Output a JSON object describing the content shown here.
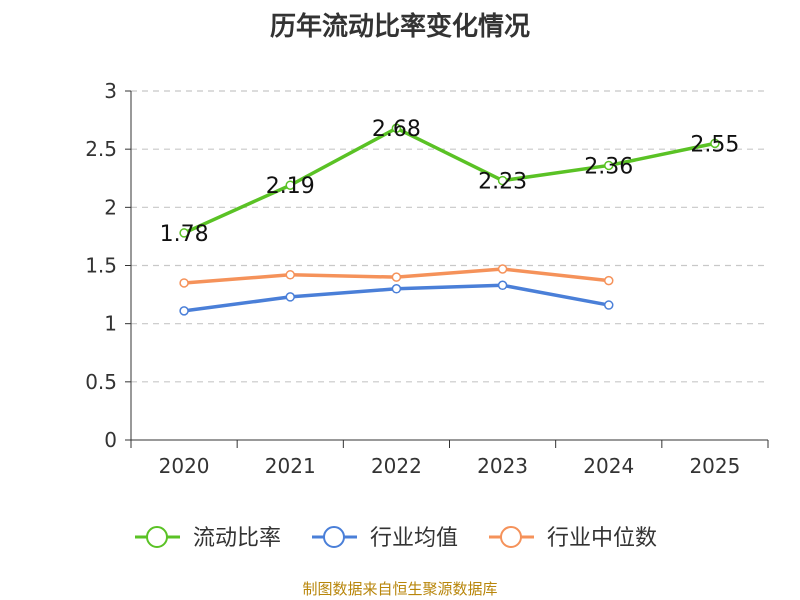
{
  "chart_data": {
    "type": "line",
    "title": "历年流动比率变化情况",
    "categories": [
      "2020",
      "2021",
      "2022",
      "2023",
      "2024",
      "2025"
    ],
    "ylim": [
      0,
      3
    ],
    "yticks": [
      "0",
      "0.5",
      "1",
      "1.5",
      "2",
      "2.5",
      "3"
    ],
    "grid": true,
    "legend_position": "bottom",
    "series": [
      {
        "name": "流动比率",
        "color": "#5ac225",
        "values": [
          1.78,
          2.19,
          2.68,
          2.23,
          2.36,
          2.55
        ],
        "labels": [
          "1.78",
          "2.19",
          "2.68",
          "2.23",
          "2.36",
          "2.55"
        ]
      },
      {
        "name": "行业均值",
        "color": "#4a7fd8",
        "values": [
          1.11,
          1.23,
          1.3,
          1.33,
          1.16,
          null
        ]
      },
      {
        "name": "行业中位数",
        "color": "#f5925a",
        "values": [
          1.35,
          1.42,
          1.4,
          1.47,
          1.37,
          null
        ]
      }
    ]
  },
  "source": "制图数据来自恒生聚源数据库"
}
